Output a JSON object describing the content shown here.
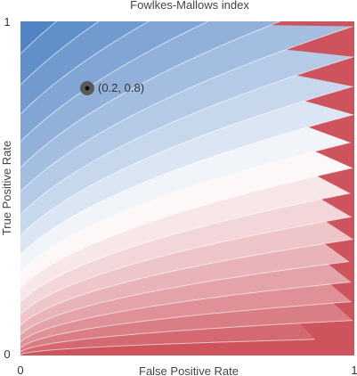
{
  "chart_data": {
    "type": "contour",
    "title": "Fowlkes-Mallows index",
    "xlabel": "False Positive Rate",
    "ylabel": "True Positive Rate",
    "xlim": [
      0,
      1
    ],
    "ylim": [
      0,
      1
    ],
    "x_tick_labels": [
      "0",
      "1"
    ],
    "y_tick_labels": [
      "0",
      "1"
    ],
    "colormap": {
      "low": "#c9444f",
      "mid": "#ffffff",
      "high": "#4a7ec2"
    },
    "contour_levels": [
      0.05,
      0.1,
      0.15,
      0.2,
      0.25,
      0.3,
      0.35,
      0.4,
      0.45,
      0.5,
      0.55,
      0.6,
      0.65,
      0.7,
      0.75,
      0.8,
      0.85,
      0.9,
      0.95
    ],
    "highlighted_point": {
      "x": 0.2,
      "y": 0.8,
      "label": "(0.2, 0.8)"
    }
  }
}
